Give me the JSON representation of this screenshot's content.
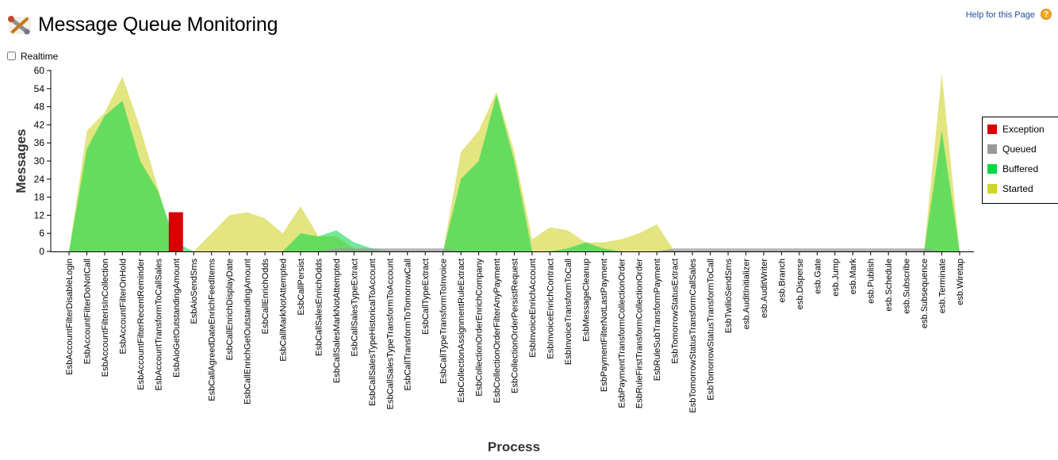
{
  "header": {
    "title": "Message Queue Monitoring",
    "app_icon": "wrench-tools-icon",
    "help_link": "Help for this Page",
    "help_icon": "help-question-icon"
  },
  "controls": {
    "realtime_label": "Realtime",
    "realtime_checked": false
  },
  "legend": {
    "items": [
      {
        "label": "Exception",
        "color": "#d50000"
      },
      {
        "label": "Queued",
        "color": "#999999"
      },
      {
        "label": "Buffered",
        "color": "#00d643"
      },
      {
        "label": "Started",
        "color": "#cfd42c"
      }
    ]
  },
  "chart_data": {
    "type": "area",
    "xlabel": "Process",
    "ylabel": "Messages",
    "ylim": [
      0,
      60
    ],
    "yticks": [
      0,
      6,
      12,
      18,
      24,
      30,
      36,
      42,
      48,
      54,
      60
    ],
    "legend_position": "right",
    "categories": [
      "EsbAccountFilterDisableLogin",
      "EsbAccountFilterDoNotCall",
      "EsbAccountFilterIsInCollection",
      "EsbAccountFilterOnHold",
      "EsbAccountFilterRecentReminder",
      "EsbAccountTransformToCallSales",
      "EsbAioGetOutstandingAmount",
      "EsbAioSendSms",
      "EsbCallAgreedDateEnrichFeedItems",
      "EsbCallEnrichDisplayDate",
      "EsbCallEnrichGetOutstandingAmount",
      "EsbCallEnrichOdds",
      "EsbCallMarkNotAttempted",
      "EsbCallPersist",
      "EsbCallSalesEnrichOdds",
      "EsbCallSalesMarkNotAttempted",
      "EsbCallSalesTypeExtract",
      "EsbCallSalesTypeHistoricalToAccount",
      "EsbCallSalesTypeTransformToAccount",
      "EsbCallTransformToTomorrowCall",
      "EsbCallTypeExtract",
      "EsbCallTypeTransformToInvoice",
      "EsbCollectionAssignmentRuleExtract",
      "EsbCollectionOrderEnrichCompany",
      "EsbCollectionOrderFilterAnyPayment",
      "EsbCollectionOrderPersistRequest",
      "EsbInvoiceEnrichAccount",
      "EsbInvoiceEnrichContract",
      "EsbInvoiceTransformToCall",
      "EsbMessageCleanup",
      "EsbPaymentFilterNotLastPayment",
      "EsbPaymentTransformCollectionOrder",
      "EsbRuleFirstTransformCollectionOrder",
      "EsbRuleSubTransformPayment",
      "EsbTomorrowStatusExtract",
      "EsbTomorrowStatusTransformCallSales",
      "EsbTomorrowStatusTransformToCall",
      "EsbTwilioSendSms",
      "esb.AuditInitializer",
      "esb.AuditWriter",
      "esb.Branch",
      "esb.Disperse",
      "esb.Gate",
      "esb.Jump",
      "esb.Mark",
      "esb.Publish",
      "esb.Schedule",
      "esb.Subscribe",
      "esb.Subsequence",
      "esb.Terminate",
      "esb.Wiretap"
    ],
    "series": [
      {
        "name": "Started",
        "color": "#cfd42c",
        "values": [
          0,
          40,
          46,
          58,
          41,
          21,
          0,
          0,
          6,
          12,
          13,
          11,
          6,
          15,
          5,
          5,
          1,
          0,
          0,
          0,
          0,
          0,
          33,
          40,
          53,
          33,
          4,
          8,
          7,
          3,
          3,
          4,
          6,
          9,
          0,
          0,
          0,
          0,
          0,
          0,
          0,
          0,
          0,
          0,
          0,
          0,
          0,
          0,
          0,
          59,
          0
        ]
      },
      {
        "name": "Buffered",
        "color": "#00d643",
        "values": [
          0,
          34,
          45,
          50,
          30,
          20,
          3,
          0,
          0,
          0,
          0,
          0,
          0,
          6,
          5,
          7,
          3,
          1,
          0,
          0,
          0,
          0,
          24,
          30,
          52,
          30,
          0,
          0,
          1,
          3,
          1,
          0,
          0,
          0,
          0,
          0,
          0,
          0,
          0,
          0,
          0,
          0,
          0,
          0,
          0,
          0,
          0,
          0,
          0,
          40,
          0
        ]
      },
      {
        "name": "Queued",
        "color": "#999999",
        "values": [
          0,
          0,
          0,
          0,
          0,
          0,
          0,
          0,
          0,
          0,
          0,
          0,
          0,
          0,
          0,
          1,
          1,
          1,
          1,
          1,
          1,
          1,
          0,
          0,
          0,
          0,
          0,
          0,
          0,
          0,
          0,
          0,
          0,
          0,
          1,
          1,
          1,
          1,
          1,
          1,
          1,
          1,
          1,
          1,
          1,
          1,
          1,
          1,
          1,
          0,
          0
        ]
      },
      {
        "name": "Exception",
        "color": "#d50000",
        "values": [
          0,
          0,
          0,
          0,
          0,
          0,
          13,
          0,
          0,
          0,
          0,
          0,
          0,
          0,
          0,
          0,
          0,
          0,
          0,
          0,
          0,
          0,
          0,
          0,
          0,
          0,
          0,
          0,
          0,
          0,
          0,
          0,
          0,
          0,
          0,
          0,
          0,
          0,
          0,
          0,
          0,
          0,
          0,
          0,
          0,
          0,
          0,
          0,
          0,
          0,
          0
        ]
      }
    ]
  }
}
